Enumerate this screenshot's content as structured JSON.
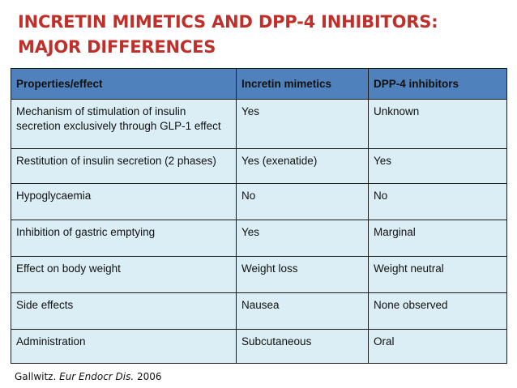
{
  "title": {
    "line1": "INCRETIN MIMETICS AND DPP-4 INHIBITORS:",
    "line2": "MAJOR DIFFERENCES"
  },
  "colors": {
    "title": "#c0302b",
    "header_bg": "#4f81bd",
    "cell_bg": "#dbeef5"
  },
  "table": {
    "headers": [
      "Properties/effect",
      "Incretin mimetics",
      "DPP-4 inhibitors"
    ],
    "rows": [
      [
        "Mechanism of stimulation of insulin secretion exclusively through GLP-1 effect",
        "Yes",
        "Unknown"
      ],
      [
        "Restitution of insulin secretion  (2 phases)",
        "Yes (exenatide)",
        "Yes"
      ],
      [
        "Hypoglycaemia",
        "No",
        "No"
      ],
      [
        "Inhibition of gastric emptying",
        "Yes",
        "Marginal"
      ],
      [
        "Effect on body weight",
        "Weight  loss",
        "Weight  neutral"
      ],
      [
        "Side effects",
        "Nausea",
        "None observed"
      ],
      [
        "Administration",
        "Subcutaneous",
        "Oral"
      ]
    ]
  },
  "citation": {
    "author": "Gallwitz. ",
    "journal": "Eur Endocr Dis.",
    "year": " 2006"
  }
}
